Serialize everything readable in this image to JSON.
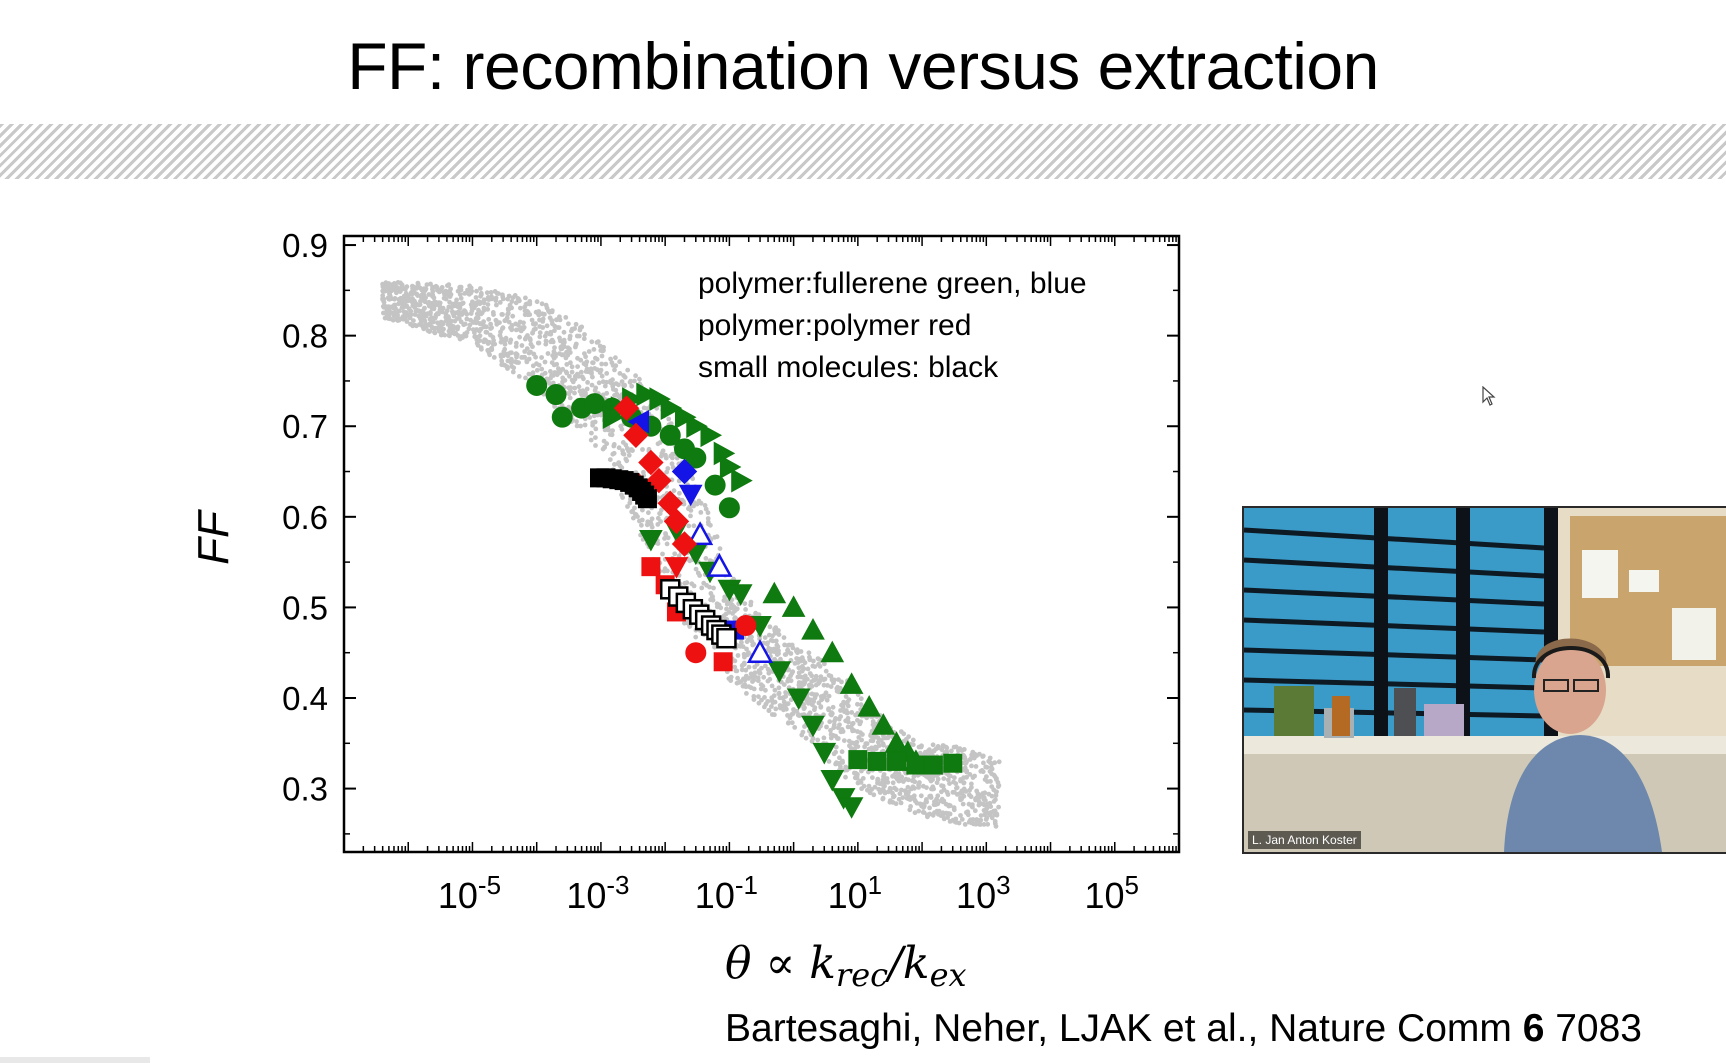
{
  "slide": {
    "title": "FF: recombination versus extraction",
    "citation_prefix": "Bartesaghi, Neher, LJAK et al., Nature Comm ",
    "citation_bold": "6",
    "citation_suffix": " 7083"
  },
  "video": {
    "participant_name": "L. Jan Anton Koster"
  },
  "chart_data": {
    "type": "scatter",
    "ylabel": "FF",
    "xlabel": "θ ∝ k_rec/k_ex",
    "x_scale": "log",
    "xlim": [
      1e-07,
      1000000.0
    ],
    "ylim": [
      0.23,
      0.91
    ],
    "x_ticks": [
      {
        "value": 1e-05,
        "base": "10",
        "exp": "-5"
      },
      {
        "value": 0.001,
        "base": "10",
        "exp": "-3"
      },
      {
        "value": 0.1,
        "base": "10",
        "exp": "-1"
      },
      {
        "value": 10,
        "base": "10",
        "exp": "1"
      },
      {
        "value": 1000,
        "base": "10",
        "exp": "3"
      },
      {
        "value": 100000,
        "base": "10",
        "exp": "5"
      }
    ],
    "y_ticks": [
      "0.3",
      "0.4",
      "0.5",
      "0.6",
      "0.7",
      "0.8",
      "0.9"
    ],
    "annotation_lines": [
      "polymer:fullerene green, blue",
      "polymer:polymer red",
      "small molecules: black"
    ],
    "grid": false,
    "colors": {
      "cloud": "#c4c4c4",
      "green": "#0f7a0f",
      "blue": "#1414e6",
      "red": "#ee1111",
      "black": "#000000"
    },
    "series": [
      {
        "color": "green",
        "marker": "circle",
        "filled": true,
        "points": [
          [
            0.0001,
            0.745
          ],
          [
            0.0002,
            0.735
          ],
          [
            0.00025,
            0.71
          ],
          [
            0.0005,
            0.72
          ],
          [
            0.0008,
            0.725
          ],
          [
            0.0015,
            0.72
          ],
          [
            0.003,
            0.71
          ],
          [
            0.006,
            0.7
          ],
          [
            0.012,
            0.69
          ],
          [
            0.02,
            0.675
          ],
          [
            0.03,
            0.665
          ],
          [
            0.06,
            0.635
          ],
          [
            0.1,
            0.61
          ]
        ]
      },
      {
        "color": "green",
        "marker": "triangle-right",
        "filled": true,
        "points": [
          [
            0.0015,
            0.71
          ],
          [
            0.002,
            0.72
          ],
          [
            0.003,
            0.73
          ],
          [
            0.005,
            0.735
          ],
          [
            0.008,
            0.73
          ],
          [
            0.012,
            0.72
          ],
          [
            0.02,
            0.71
          ],
          [
            0.03,
            0.7
          ],
          [
            0.05,
            0.69
          ],
          [
            0.08,
            0.67
          ],
          [
            0.1,
            0.655
          ],
          [
            0.15,
            0.64
          ]
        ]
      },
      {
        "color": "green",
        "marker": "triangle-down",
        "filled": true,
        "points": [
          [
            0.006,
            0.575
          ],
          [
            0.015,
            0.585
          ],
          [
            0.03,
            0.56
          ],
          [
            0.05,
            0.54
          ],
          [
            0.1,
            0.52
          ],
          [
            0.15,
            0.515
          ],
          [
            0.3,
            0.48
          ],
          [
            0.6,
            0.43
          ],
          [
            1.2,
            0.4
          ],
          [
            2,
            0.37
          ],
          [
            3,
            0.34
          ],
          [
            4,
            0.31
          ],
          [
            6,
            0.29
          ],
          [
            8,
            0.28
          ]
        ]
      },
      {
        "color": "green",
        "marker": "triangle-up",
        "filled": true,
        "points": [
          [
            0.5,
            0.515
          ],
          [
            1,
            0.5
          ],
          [
            2,
            0.475
          ],
          [
            4,
            0.45
          ],
          [
            8,
            0.415
          ],
          [
            15,
            0.39
          ],
          [
            25,
            0.37
          ],
          [
            40,
            0.35
          ],
          [
            60,
            0.34
          ],
          [
            80,
            0.33
          ]
        ]
      },
      {
        "color": "green",
        "marker": "square",
        "filled": true,
        "points": [
          [
            10,
            0.332
          ],
          [
            20,
            0.33
          ],
          [
            40,
            0.33
          ],
          [
            80,
            0.326
          ],
          [
            150,
            0.326
          ],
          [
            300,
            0.328
          ]
        ]
      },
      {
        "color": "blue",
        "marker": "triangle-left",
        "filled": true,
        "points": [
          [
            0.004,
            0.705
          ]
        ]
      },
      {
        "color": "blue",
        "marker": "diamond",
        "filled": true,
        "points": [
          [
            0.02,
            0.65
          ]
        ]
      },
      {
        "color": "blue",
        "marker": "triangle-down",
        "filled": true,
        "points": [
          [
            0.025,
            0.625
          ]
        ]
      },
      {
        "color": "blue",
        "marker": "triangle-up",
        "filled": false,
        "points": [
          [
            0.035,
            0.58
          ],
          [
            0.07,
            0.545
          ],
          [
            0.3,
            0.45
          ]
        ]
      },
      {
        "color": "blue",
        "marker": "square",
        "filled": true,
        "points": [
          [
            0.12,
            0.475
          ]
        ]
      },
      {
        "color": "red",
        "marker": "diamond",
        "filled": true,
        "points": [
          [
            0.0025,
            0.72
          ],
          [
            0.0035,
            0.69
          ],
          [
            0.006,
            0.66
          ],
          [
            0.008,
            0.64
          ],
          [
            0.012,
            0.615
          ],
          [
            0.015,
            0.595
          ],
          [
            0.02,
            0.57
          ]
        ]
      },
      {
        "color": "red",
        "marker": "triangle-up",
        "filled": true,
        "points": [
          [
            0.004,
            0.635
          ]
        ]
      },
      {
        "color": "red",
        "marker": "triangle-down",
        "filled": true,
        "points": [
          [
            0.015,
            0.545
          ]
        ]
      },
      {
        "color": "red",
        "marker": "square",
        "filled": true,
        "points": [
          [
            0.006,
            0.545
          ],
          [
            0.01,
            0.525
          ],
          [
            0.015,
            0.495
          ],
          [
            0.08,
            0.44
          ]
        ]
      },
      {
        "color": "red",
        "marker": "circle",
        "filled": true,
        "points": [
          [
            0.03,
            0.45
          ],
          [
            0.18,
            0.48
          ]
        ]
      },
      {
        "color": "black",
        "marker": "square",
        "filled": true,
        "points": [
          [
            0.00095,
            0.643
          ],
          [
            0.0012,
            0.643
          ],
          [
            0.0015,
            0.642
          ],
          [
            0.0019,
            0.641
          ],
          [
            0.0023,
            0.64
          ],
          [
            0.0028,
            0.638
          ],
          [
            0.0033,
            0.635
          ],
          [
            0.0038,
            0.632
          ],
          [
            0.0043,
            0.628
          ],
          [
            0.0048,
            0.624
          ],
          [
            0.0053,
            0.62
          ]
        ]
      },
      {
        "color": "black",
        "marker": "square",
        "filled": false,
        "points": [
          [
            0.012,
            0.52
          ],
          [
            0.016,
            0.512
          ],
          [
            0.021,
            0.505
          ],
          [
            0.027,
            0.498
          ],
          [
            0.034,
            0.492
          ],
          [
            0.042,
            0.486
          ],
          [
            0.052,
            0.48
          ],
          [
            0.063,
            0.475
          ],
          [
            0.075,
            0.47
          ],
          [
            0.09,
            0.466
          ]
        ]
      }
    ]
  }
}
